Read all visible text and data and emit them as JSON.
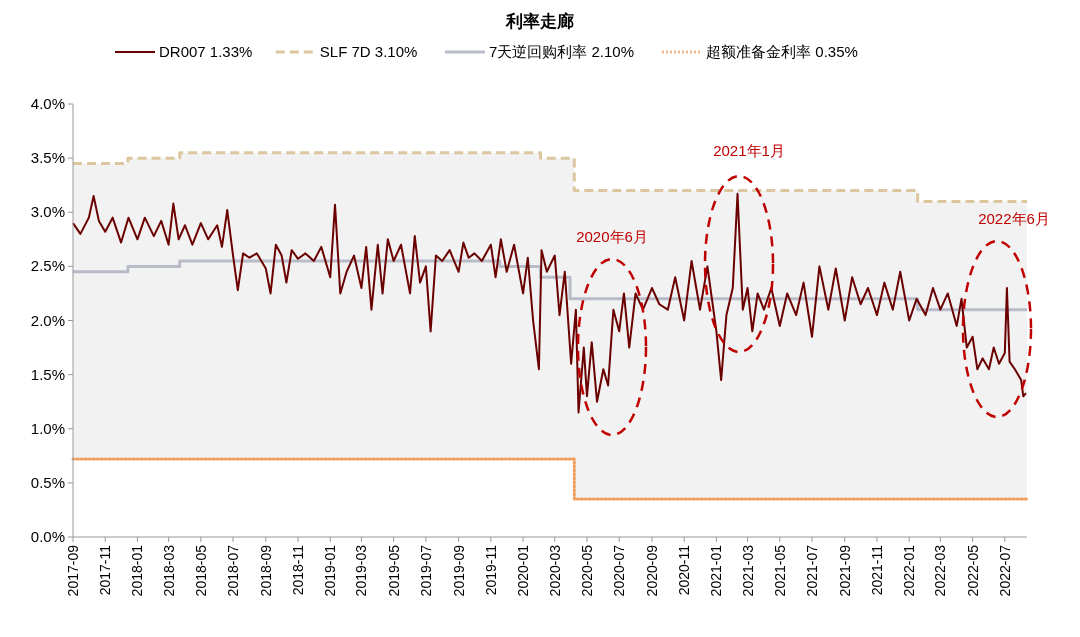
{
  "chart_data": {
    "type": "line",
    "title": "利率走廊",
    "legend": "top",
    "marker": "none",
    "grid": false,
    "xlim": [
      "2017-09-01",
      "2022-08-12"
    ],
    "xticks": [
      "2017-09",
      "2017-11",
      "2018-01",
      "2018-03",
      "2018-05",
      "2018-07",
      "2018-09",
      "2018-11",
      "2019-01",
      "2019-03",
      "2019-05",
      "2019-07",
      "2019-09",
      "2019-11",
      "2020-01",
      "2020-03",
      "2020-05",
      "2020-07",
      "2020-09",
      "2020-11",
      "2021-01",
      "2021-03",
      "2021-05",
      "2021-07",
      "2021-09",
      "2021-11",
      "2022-01",
      "2022-03",
      "2022-05",
      "2022-07"
    ],
    "ylim": [
      0,
      4
    ],
    "yticks": [
      {
        "value": 0,
        "label": "0.0%"
      },
      {
        "value": 0.5,
        "label": "0.5%"
      },
      {
        "value": 1,
        "label": "1.0%"
      },
      {
        "value": 1.5,
        "label": "1.5%"
      },
      {
        "value": 2,
        "label": "2.0%"
      },
      {
        "value": 2.5,
        "label": "2.5%"
      },
      {
        "value": 3,
        "label": "3.0%"
      },
      {
        "value": 3.5,
        "label": "3.5%"
      },
      {
        "value": 4,
        "label": "4.0%"
      }
    ],
    "annotations": [
      "2020年6月",
      "2021年1月",
      "2022年6月"
    ],
    "series": [
      {
        "name": "DR007  1.33%",
        "type": "line",
        "color": "#6b0000",
        "line_style": "solid",
        "x": [
          "2017-09-01",
          "2017-09-15",
          "2017-10-01",
          "2017-10-10",
          "2017-10-20",
          "2017-11-01",
          "2017-11-15",
          "2017-12-01",
          "2017-12-15",
          "2018-01-01",
          "2018-01-15",
          "2018-02-01",
          "2018-02-15",
          "2018-03-01",
          "2018-03-10",
          "2018-03-20",
          "2018-04-01",
          "2018-04-15",
          "2018-05-01",
          "2018-05-15",
          "2018-06-01",
          "2018-06-10",
          "2018-06-20",
          "2018-07-01",
          "2018-07-10",
          "2018-07-20",
          "2018-08-01",
          "2018-08-15",
          "2018-09-01",
          "2018-09-10",
          "2018-09-20",
          "2018-10-01",
          "2018-10-10",
          "2018-10-20",
          "2018-11-01",
          "2018-11-15",
          "2018-12-01",
          "2018-12-15",
          "2019-01-01",
          "2019-01-10",
          "2019-01-20",
          "2019-02-01",
          "2019-02-15",
          "2019-03-01",
          "2019-03-10",
          "2019-03-20",
          "2019-04-01",
          "2019-04-10",
          "2019-04-20",
          "2019-05-01",
          "2019-05-15",
          "2019-06-01",
          "2019-06-10",
          "2019-06-20",
          "2019-07-01",
          "2019-07-10",
          "2019-07-20",
          "2019-08-01",
          "2019-08-15",
          "2019-09-01",
          "2019-09-10",
          "2019-09-20",
          "2019-10-01",
          "2019-10-15",
          "2019-11-01",
          "2019-11-10",
          "2019-11-20",
          "2019-12-01",
          "2019-12-15",
          "2020-01-01",
          "2020-01-10",
          "2020-01-20",
          "2020-01-31",
          "2020-02-05",
          "2020-02-15",
          "2020-03-01",
          "2020-03-10",
          "2020-03-20",
          "2020-04-01",
          "2020-04-10",
          "2020-04-15",
          "2020-04-25",
          "2020-05-01",
          "2020-05-10",
          "2020-05-20",
          "2020-06-01",
          "2020-06-10",
          "2020-06-20",
          "2020-07-01",
          "2020-07-10",
          "2020-07-20",
          "2020-08-01",
          "2020-08-15",
          "2020-09-01",
          "2020-09-15",
          "2020-10-01",
          "2020-10-15",
          "2020-11-01",
          "2020-11-15",
          "2020-12-01",
          "2020-12-15",
          "2021-01-01",
          "2021-01-10",
          "2021-01-20",
          "2021-02-01",
          "2021-02-10",
          "2021-02-20",
          "2021-03-01",
          "2021-03-10",
          "2021-03-20",
          "2021-04-01",
          "2021-04-15",
          "2021-05-01",
          "2021-05-15",
          "2021-06-01",
          "2021-06-15",
          "2021-07-01",
          "2021-07-15",
          "2021-08-01",
          "2021-08-15",
          "2021-09-01",
          "2021-09-15",
          "2021-10-01",
          "2021-10-15",
          "2021-11-01",
          "2021-11-15",
          "2021-12-01",
          "2021-12-15",
          "2022-01-01",
          "2022-01-15",
          "2022-02-01",
          "2022-02-15",
          "2022-03-01",
          "2022-03-15",
          "2022-04-01",
          "2022-04-10",
          "2022-04-20",
          "2022-05-01",
          "2022-05-10",
          "2022-05-20",
          "2022-06-01",
          "2022-06-10",
          "2022-06-20",
          "2022-07-01",
          "2022-07-05",
          "2022-07-10",
          "2022-07-20",
          "2022-08-01",
          "2022-08-05",
          "2022-08-10"
        ],
        "values": [
          2.9,
          2.8,
          2.95,
          3.15,
          2.92,
          2.82,
          2.95,
          2.72,
          2.95,
          2.75,
          2.95,
          2.78,
          2.92,
          2.7,
          3.08,
          2.75,
          2.88,
          2.7,
          2.9,
          2.75,
          2.88,
          2.68,
          3.02,
          2.6,
          2.28,
          2.62,
          2.58,
          2.62,
          2.48,
          2.25,
          2.7,
          2.6,
          2.35,
          2.65,
          2.57,
          2.62,
          2.55,
          2.68,
          2.4,
          3.07,
          2.25,
          2.45,
          2.6,
          2.3,
          2.68,
          2.1,
          2.7,
          2.25,
          2.75,
          2.55,
          2.7,
          2.25,
          2.78,
          2.35,
          2.5,
          1.9,
          2.6,
          2.55,
          2.65,
          2.45,
          2.72,
          2.58,
          2.62,
          2.55,
          2.7,
          2.4,
          2.75,
          2.45,
          2.7,
          2.25,
          2.58,
          2.0,
          1.55,
          2.65,
          2.45,
          2.6,
          2.05,
          2.45,
          1.6,
          2.1,
          1.15,
          1.75,
          1.3,
          1.8,
          1.25,
          1.55,
          1.4,
          2.1,
          1.9,
          2.25,
          1.75,
          2.25,
          2.1,
          2.3,
          2.15,
          2.1,
          2.4,
          2.0,
          2.55,
          2.1,
          2.5,
          1.9,
          1.45,
          2.05,
          2.3,
          3.17,
          2.1,
          2.3,
          1.9,
          2.25,
          2.1,
          2.3,
          1.95,
          2.25,
          2.05,
          2.35,
          1.85,
          2.5,
          2.1,
          2.48,
          2.0,
          2.4,
          2.15,
          2.3,
          2.05,
          2.35,
          2.1,
          2.45,
          2.0,
          2.2,
          2.05,
          2.3,
          2.1,
          2.25,
          1.95,
          2.2,
          1.75,
          1.85,
          1.55,
          1.65,
          1.55,
          1.75,
          1.6,
          1.7,
          2.3,
          1.62,
          1.55,
          1.45,
          1.3,
          1.33
        ]
      },
      {
        "name": "SLF 7D  3.10%",
        "type": "step",
        "color": "#dcc6a0",
        "line_style": "dashed",
        "x": [
          "2017-09-01",
          "2017-12-14",
          "2018-03-22",
          "2020-02-03",
          "2020-04-07",
          "2022-01-17",
          "2022-08-12"
        ],
        "values": [
          3.45,
          3.5,
          3.55,
          3.5,
          3.2,
          3.1,
          3.1
        ],
        "upper": [
          3.45,
          3.5,
          3.55,
          3.5,
          3.2,
          3.1,
          3.1
        ],
        "lower": [
          0.72,
          0.72,
          0.72,
          0.72,
          0.35,
          0.35,
          0.35
        ]
      },
      {
        "name": "7天逆回购利率  2.10%",
        "type": "step",
        "color": "#b8bcc8",
        "line_style": "solid",
        "x": [
          "2017-09-01",
          "2017-12-14",
          "2018-03-22",
          "2019-11-18",
          "2020-02-03",
          "2020-03-30",
          "2022-01-17",
          "2022-08-12"
        ],
        "values": [
          2.45,
          2.5,
          2.55,
          2.5,
          2.4,
          2.2,
          2.1,
          2.1
        ]
      },
      {
        "name": "超额准备金利率  0.35%",
        "type": "step",
        "color": "#f0a060",
        "line_style": "dotted",
        "x": [
          "2017-09-01",
          "2020-04-07",
          "2022-08-12"
        ],
        "values": [
          0.72,
          0.35,
          0.35
        ]
      }
    ]
  }
}
